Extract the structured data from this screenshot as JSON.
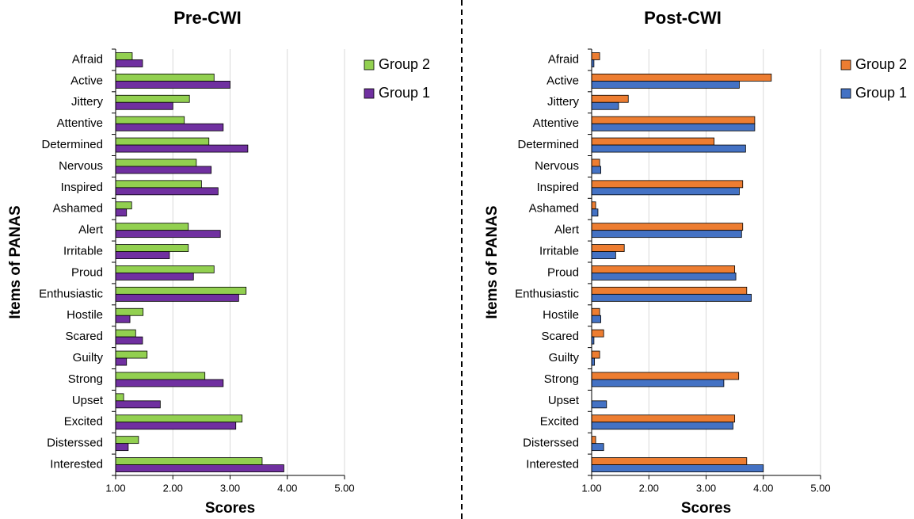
{
  "chart_data": [
    {
      "type": "bar",
      "orientation": "horizontal",
      "title": "Pre-CWI",
      "x_label": "Scores",
      "y_label": "Items of PANAS",
      "categories": [
        "Afraid",
        "Active",
        "Jittery",
        "Attentive",
        "Determined",
        "Nervous",
        "Inspired",
        "Ashamed",
        "Alert",
        "Irritable",
        "Proud",
        "Enthusiastic",
        "Hostile",
        "Scared",
        "Guilty",
        "Strong",
        "Upset",
        "Excited",
        "Disterssed",
        "Interested"
      ],
      "series": [
        {
          "name": "Group 2",
          "color": "#92d050",
          "values": [
            1.29,
            2.72,
            2.29,
            2.2,
            2.63,
            2.41,
            2.5,
            1.28,
            2.27,
            2.27,
            2.72,
            3.28,
            1.48,
            1.35,
            1.55,
            2.56,
            1.14,
            3.21,
            1.4,
            3.56
          ]
        },
        {
          "name": "Group 1",
          "color": "#7030a0",
          "values": [
            1.47,
            3.0,
            2.0,
            2.88,
            3.31,
            2.67,
            2.79,
            1.19,
            2.83,
            1.94,
            2.36,
            3.15,
            1.25,
            1.47,
            1.19,
            2.88,
            1.78,
            3.1,
            1.22,
            3.94
          ]
        }
      ],
      "xlim": [
        1,
        5
      ],
      "xticks": [
        {
          "value": 1,
          "label": "1.00"
        },
        {
          "value": 2,
          "label": "2.00"
        },
        {
          "value": 3,
          "label": "3.00"
        },
        {
          "value": 4,
          "label": "4.00"
        },
        {
          "value": 5,
          "label": "5.00"
        }
      ],
      "grid": true,
      "legend": "top-right"
    },
    {
      "type": "bar",
      "orientation": "horizontal",
      "title": "Post-CWI",
      "x_label": "Scores",
      "y_label": "Items of PANAS",
      "categories": [
        "Afraid",
        "Active",
        "Jittery",
        "Attentive",
        "Determined",
        "Nervous",
        "Inspired",
        "Ashamed",
        "Alert",
        "Irritable",
        "Proud",
        "Enthusiastic",
        "Hostile",
        "Scared",
        "Guilty",
        "Strong",
        "Upset",
        "Excited",
        "Disterssed",
        "Interested"
      ],
      "series": [
        {
          "name": "Group 2",
          "color": "#ed7d31",
          "values": [
            1.14,
            4.14,
            1.64,
            3.85,
            3.14,
            1.14,
            3.64,
            1.07,
            3.64,
            1.57,
            3.5,
            3.71,
            1.14,
            1.21,
            1.14,
            3.57,
            1.0,
            3.5,
            1.07,
            3.71
          ]
        },
        {
          "name": "Group 1",
          "color": "#4472c4",
          "values": [
            1.04,
            3.58,
            1.47,
            3.85,
            3.69,
            1.16,
            3.58,
            1.11,
            3.62,
            1.42,
            3.52,
            3.79,
            1.16,
            1.04,
            1.05,
            3.31,
            1.26,
            3.47,
            1.21,
            4.0
          ]
        }
      ],
      "xlim": [
        1,
        5
      ],
      "xticks": [
        {
          "value": 1,
          "label": "1.00"
        },
        {
          "value": 2,
          "label": "2.00"
        },
        {
          "value": 3,
          "label": "3.00"
        },
        {
          "value": 4,
          "label": "4.00"
        },
        {
          "value": 5,
          "label": "5.00"
        }
      ],
      "grid": true,
      "legend": "top-right"
    }
  ]
}
